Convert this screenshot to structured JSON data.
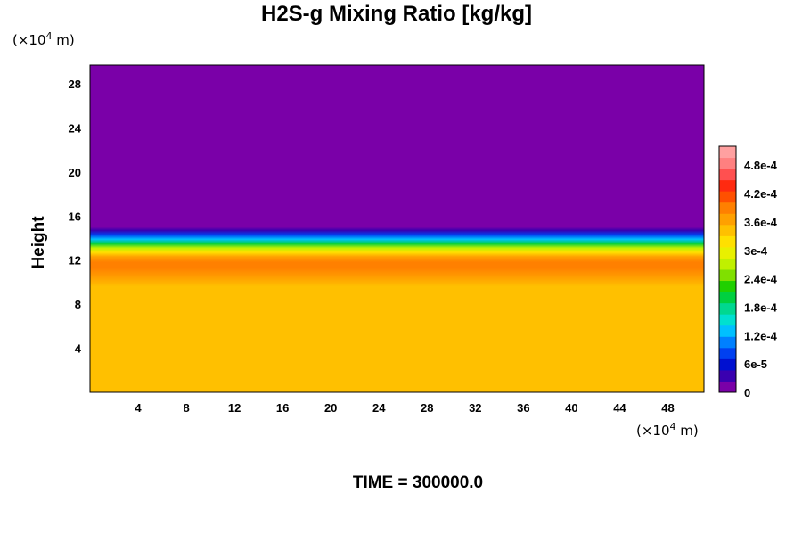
{
  "chart_data": {
    "type": "heatmap",
    "title": "H2S-g Mixing Ratio [kg/kg]",
    "ylabel": "Height",
    "xlabel": "",
    "x_unit": "(×10",
    "x_unit_exp": "4",
    "x_unit_tail": " m)",
    "y_unit": "(×10",
    "y_unit_exp": "4",
    "y_unit_tail": " m)",
    "xlim": [
      0,
      51
    ],
    "ylim": [
      0,
      29.7
    ],
    "xticks": [
      4,
      8,
      12,
      16,
      20,
      24,
      28,
      32,
      36,
      40,
      44,
      48
    ],
    "yticks": [
      4,
      8,
      12,
      16,
      20,
      24,
      28
    ],
    "grid": false,
    "colorbar": {
      "range": [
        0,
        0.00052
      ],
      "tick_values": [
        0,
        6e-05,
        0.00012,
        0.00018,
        0.00024,
        0.0003,
        0.00036,
        0.00042,
        0.00048
      ],
      "tick_labels": [
        "0",
        "6e-5",
        "1.2e-4",
        "1.8e-4",
        "2.4e-4",
        "3e-4",
        "3.6e-4",
        "4.2e-4",
        "4.8e-4"
      ],
      "colors": [
        "#7a00a8",
        "#3a00b0",
        "#0010d0",
        "#0040f0",
        "#0080ff",
        "#00c0ff",
        "#00e0d0",
        "#00d890",
        "#00d040",
        "#20d000",
        "#80e000",
        "#c0f000",
        "#e8f000",
        "#ffe000",
        "#ffc000",
        "#ffa000",
        "#ff8000",
        "#ff5000",
        "#ff2a10",
        "#ff5050",
        "#ff8080",
        "#ffa0a0"
      ]
    },
    "profile": [
      {
        "height": 0,
        "value": 0.000333
      },
      {
        "height": 8.5,
        "value": 0.000333
      },
      {
        "height": 9.6,
        "value": 0.00035
      },
      {
        "height": 10.4,
        "value": 0.000375
      },
      {
        "height": 11.3,
        "value": 0.000395
      },
      {
        "height": 11.8,
        "value": 0.00039
      },
      {
        "height": 12.3,
        "value": 0.00036
      },
      {
        "height": 12.7,
        "value": 0.00031
      },
      {
        "height": 13.1,
        "value": 0.00026
      },
      {
        "height": 13.5,
        "value": 0.0002
      },
      {
        "height": 13.9,
        "value": 0.00014
      },
      {
        "height": 14.3,
        "value": 8e-05
      },
      {
        "height": 14.7,
        "value": 3e-05
      },
      {
        "height": 15.0,
        "value": 0
      },
      {
        "height": 29.7,
        "value": 0
      }
    ],
    "time_label": "TIME = 300000.0"
  }
}
